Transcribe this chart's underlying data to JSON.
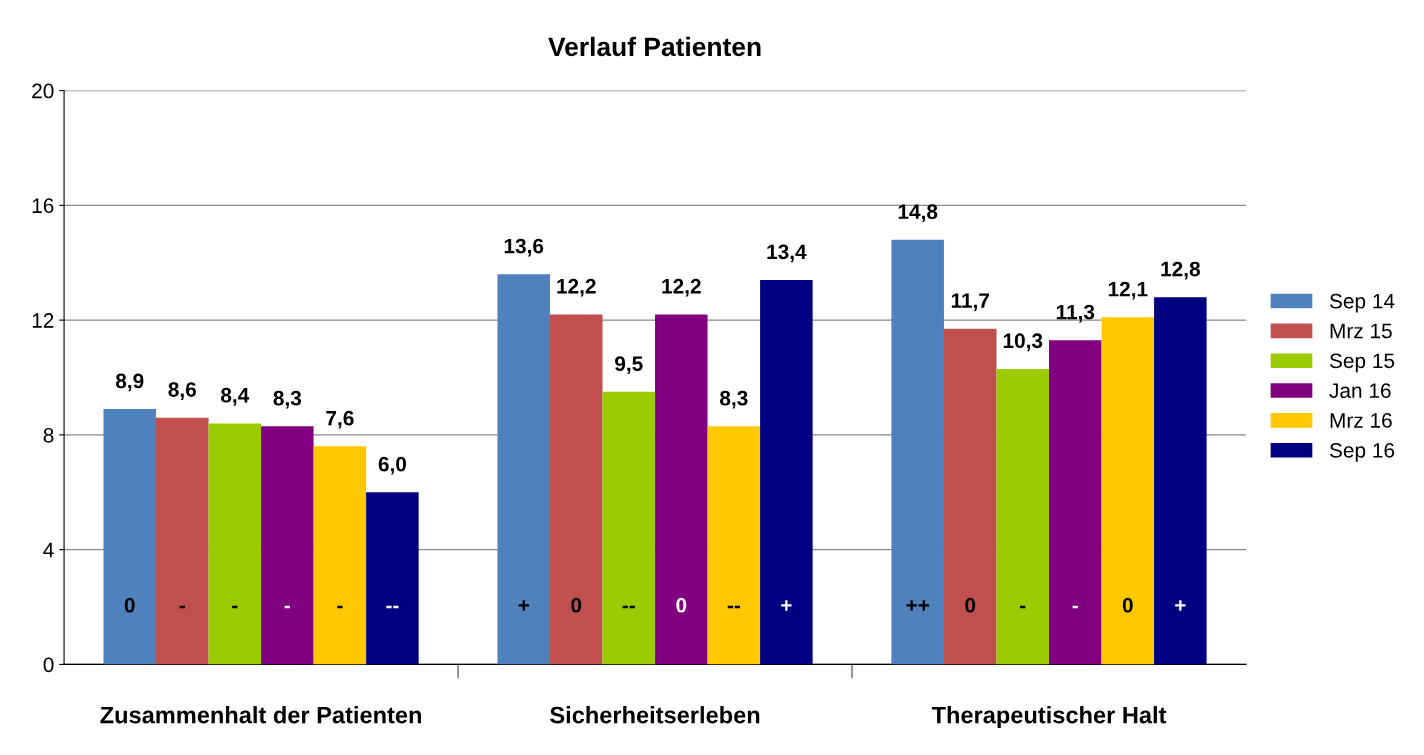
{
  "chart_data": {
    "type": "bar",
    "title": "Verlauf Patienten",
    "categories": [
      "Zusammenhalt der Patienten",
      "Sicherheitserleben",
      "Therapeutischer Halt"
    ],
    "series": [
      {
        "name": "Sep 14",
        "color": "#4f81bd",
        "values": [
          8.9,
          13.6,
          14.8
        ],
        "value_labels": [
          "8,9",
          "13,6",
          "14,8"
        ]
      },
      {
        "name": "Mrz 15",
        "color": "#c0504d",
        "values": [
          8.6,
          12.2,
          11.7
        ],
        "value_labels": [
          "8,6",
          "12,2",
          "11,7"
        ]
      },
      {
        "name": "Sep 15",
        "color": "#9bcb00",
        "values": [
          8.4,
          9.5,
          10.3
        ],
        "value_labels": [
          "8,4",
          "9,5",
          "10,3"
        ]
      },
      {
        "name": "Jan 16",
        "color": "#800080",
        "values": [
          8.3,
          12.2,
          11.3
        ],
        "value_labels": [
          "8,3",
          "12,2",
          "11,3"
        ]
      },
      {
        "name": "Mrz 16",
        "color": "#ffc800",
        "values": [
          7.6,
          8.3,
          12.1
        ],
        "value_labels": [
          "7,6",
          "8,3",
          "12,1"
        ]
      },
      {
        "name": "Sep 16",
        "color": "#000080",
        "values": [
          6.0,
          13.4,
          12.8
        ],
        "value_labels": [
          "6,0",
          "13,4",
          "12,8"
        ]
      }
    ],
    "annotations": [
      "0",
      "+",
      "++",
      "-",
      "0",
      "0",
      "-",
      "--",
      "-",
      "-",
      "0",
      "-",
      "-",
      "--",
      "0",
      "--",
      "+",
      "+"
    ],
    "ylim": [
      0,
      20
    ],
    "yticks": [
      0,
      4,
      8,
      12,
      16,
      20
    ],
    "grid": "y",
    "legend": "right"
  }
}
